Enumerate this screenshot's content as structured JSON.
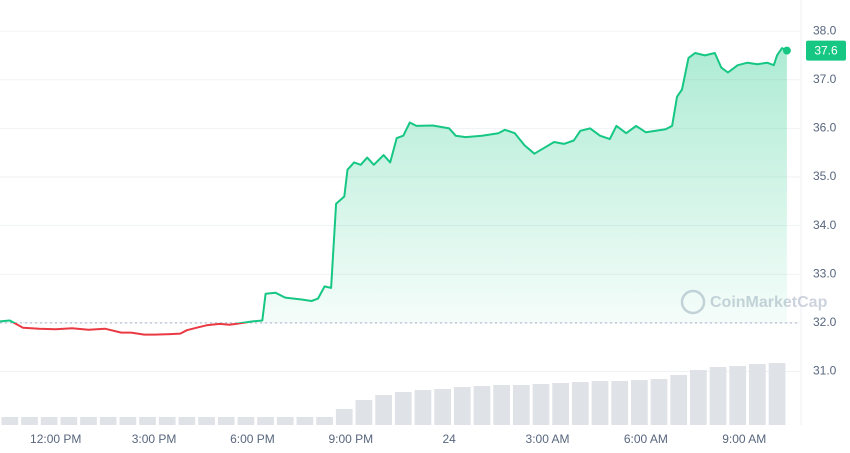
{
  "chart_data": {
    "type": "line",
    "baseline": 32,
    "up_color": "#16c784",
    "down_color": "#ea3943",
    "grid": true,
    "watermark": "CoinMarketCap",
    "current_value": 37.6,
    "xlim": [
      10.3,
      34.7
    ],
    "ylim": [
      29.9,
      38.64
    ],
    "xticks": [
      {
        "value": 12,
        "label": "12:00 PM"
      },
      {
        "value": 15,
        "label": "3:00 PM"
      },
      {
        "value": 18,
        "label": "6:00 PM"
      },
      {
        "value": 21,
        "label": "9:00 PM"
      },
      24,
      {
        "value": 27,
        "label": "3:00 AM"
      },
      {
        "value": 30,
        "label": "6:00 AM"
      },
      {
        "value": 33,
        "label": "9:00 AM"
      }
    ],
    "yticks": [
      {
        "value": 31,
        "label": "31.0"
      },
      {
        "value": 32,
        "label": "32.0"
      },
      {
        "value": 33,
        "label": "33.0"
      },
      {
        "value": 34,
        "label": "34.0"
      },
      {
        "value": 35,
        "label": "35.0"
      },
      {
        "value": 36,
        "label": "36.0"
      },
      {
        "value": 37,
        "label": "37.0"
      },
      {
        "value": 38,
        "label": "38.0"
      }
    ],
    "x": [
      10.3,
      10.6,
      11.0,
      11.5,
      12.0,
      12.5,
      13.0,
      13.5,
      14.0,
      14.3,
      14.7,
      15.0,
      15.5,
      15.8,
      16.0,
      16.3,
      16.6,
      17.0,
      17.3,
      17.6,
      18.0,
      18.3,
      18.4,
      18.7,
      19.0,
      19.5,
      19.8,
      20.0,
      20.2,
      20.4,
      20.55,
      20.8,
      20.9,
      21.1,
      21.3,
      21.5,
      21.7,
      22.0,
      22.2,
      22.4,
      22.6,
      22.8,
      23.0,
      23.5,
      24.0,
      24.2,
      24.5,
      25.0,
      25.5,
      25.7,
      26.0,
      26.3,
      26.6,
      26.9,
      27.2,
      27.5,
      27.8,
      28.0,
      28.3,
      28.6,
      28.9,
      29.1,
      29.4,
      29.7,
      30.0,
      30.3,
      30.6,
      30.8,
      30.95,
      31.1,
      31.3,
      31.5,
      31.8,
      32.1,
      32.3,
      32.5,
      32.8,
      33.1,
      33.4,
      33.7,
      33.9,
      34.0,
      34.15,
      34.3
    ],
    "values": [
      32.03,
      32.05,
      31.9,
      31.88,
      31.87,
      31.89,
      31.86,
      31.88,
      31.8,
      31.8,
      31.76,
      31.76,
      31.77,
      31.78,
      31.85,
      31.9,
      31.95,
      31.98,
      31.96,
      31.99,
      32.03,
      32.05,
      32.6,
      32.62,
      32.52,
      32.48,
      32.45,
      32.5,
      32.75,
      32.72,
      34.45,
      34.6,
      35.15,
      35.3,
      35.25,
      35.4,
      35.25,
      35.45,
      35.3,
      35.8,
      35.85,
      36.12,
      36.05,
      36.06,
      36.0,
      35.85,
      35.82,
      35.85,
      35.9,
      35.97,
      35.9,
      35.65,
      35.48,
      35.6,
      35.72,
      35.68,
      35.75,
      35.95,
      36.0,
      35.85,
      35.78,
      36.05,
      35.9,
      36.05,
      35.92,
      35.95,
      35.98,
      36.05,
      36.65,
      36.8,
      37.45,
      37.55,
      37.5,
      37.55,
      37.25,
      37.15,
      37.3,
      37.35,
      37.32,
      37.35,
      37.3,
      37.5,
      37.65,
      37.6
    ],
    "volume": {
      "color": "#dfe2e7",
      "ylim": [
        0,
        425
      ],
      "x": [
        10.6,
        11.2,
        11.8,
        12.4,
        13.0,
        13.6,
        14.2,
        14.8,
        15.4,
        16.0,
        16.6,
        17.2,
        17.8,
        18.4,
        19.0,
        19.6,
        20.2,
        20.8,
        21.4,
        22.0,
        22.6,
        23.2,
        23.8,
        24.4,
        25.0,
        25.6,
        26.2,
        26.8,
        27.4,
        28.0,
        28.6,
        29.2,
        29.8,
        30.4,
        31.0,
        31.6,
        32.2,
        32.8,
        33.4,
        34.0
      ],
      "values": [
        8,
        8,
        8,
        8,
        8,
        8,
        8,
        8,
        8,
        8,
        8,
        8,
        8,
        8,
        8,
        8,
        8,
        16,
        25,
        30,
        33,
        35,
        36,
        38,
        39,
        40,
        40,
        41,
        42,
        43,
        44,
        44,
        45,
        46,
        50,
        55,
        58,
        59,
        61,
        62
      ]
    }
  }
}
